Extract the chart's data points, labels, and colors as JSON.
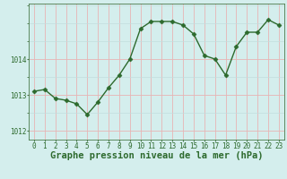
{
  "x": [
    0,
    1,
    2,
    3,
    4,
    5,
    6,
    7,
    8,
    9,
    10,
    11,
    12,
    13,
    14,
    15,
    16,
    17,
    18,
    19,
    20,
    21,
    22,
    23
  ],
  "y": [
    1013.1,
    1013.15,
    1012.9,
    1012.85,
    1012.75,
    1012.45,
    1012.8,
    1013.2,
    1013.55,
    1014.0,
    1014.85,
    1015.05,
    1015.05,
    1015.05,
    1014.95,
    1014.7,
    1014.1,
    1014.0,
    1013.55,
    1014.35,
    1014.75,
    1014.75,
    1015.1,
    1014.95
  ],
  "line_color": "#2d6a2d",
  "marker": "D",
  "marker_size": 2.5,
  "bg_color": "#d4eeed",
  "grid_color_major": "#e8b4b4",
  "grid_color_minor": "#c2dede",
  "xlabel": "Graphe pression niveau de la mer (hPa)",
  "xlabel_fontsize": 7.5,
  "xlabel_color": "#2d6a2d",
  "ylabel_ticks": [
    1012,
    1013,
    1014
  ],
  "ylim": [
    1011.75,
    1015.55
  ],
  "xlim": [
    -0.5,
    23.5
  ],
  "xticks": [
    0,
    1,
    2,
    3,
    4,
    5,
    6,
    7,
    8,
    9,
    10,
    11,
    12,
    13,
    14,
    15,
    16,
    17,
    18,
    19,
    20,
    21,
    22,
    23
  ],
  "tick_fontsize": 5.5,
  "tick_color": "#2d6a2d",
  "spine_color": "#4a7a4a",
  "linewidth": 1.0
}
